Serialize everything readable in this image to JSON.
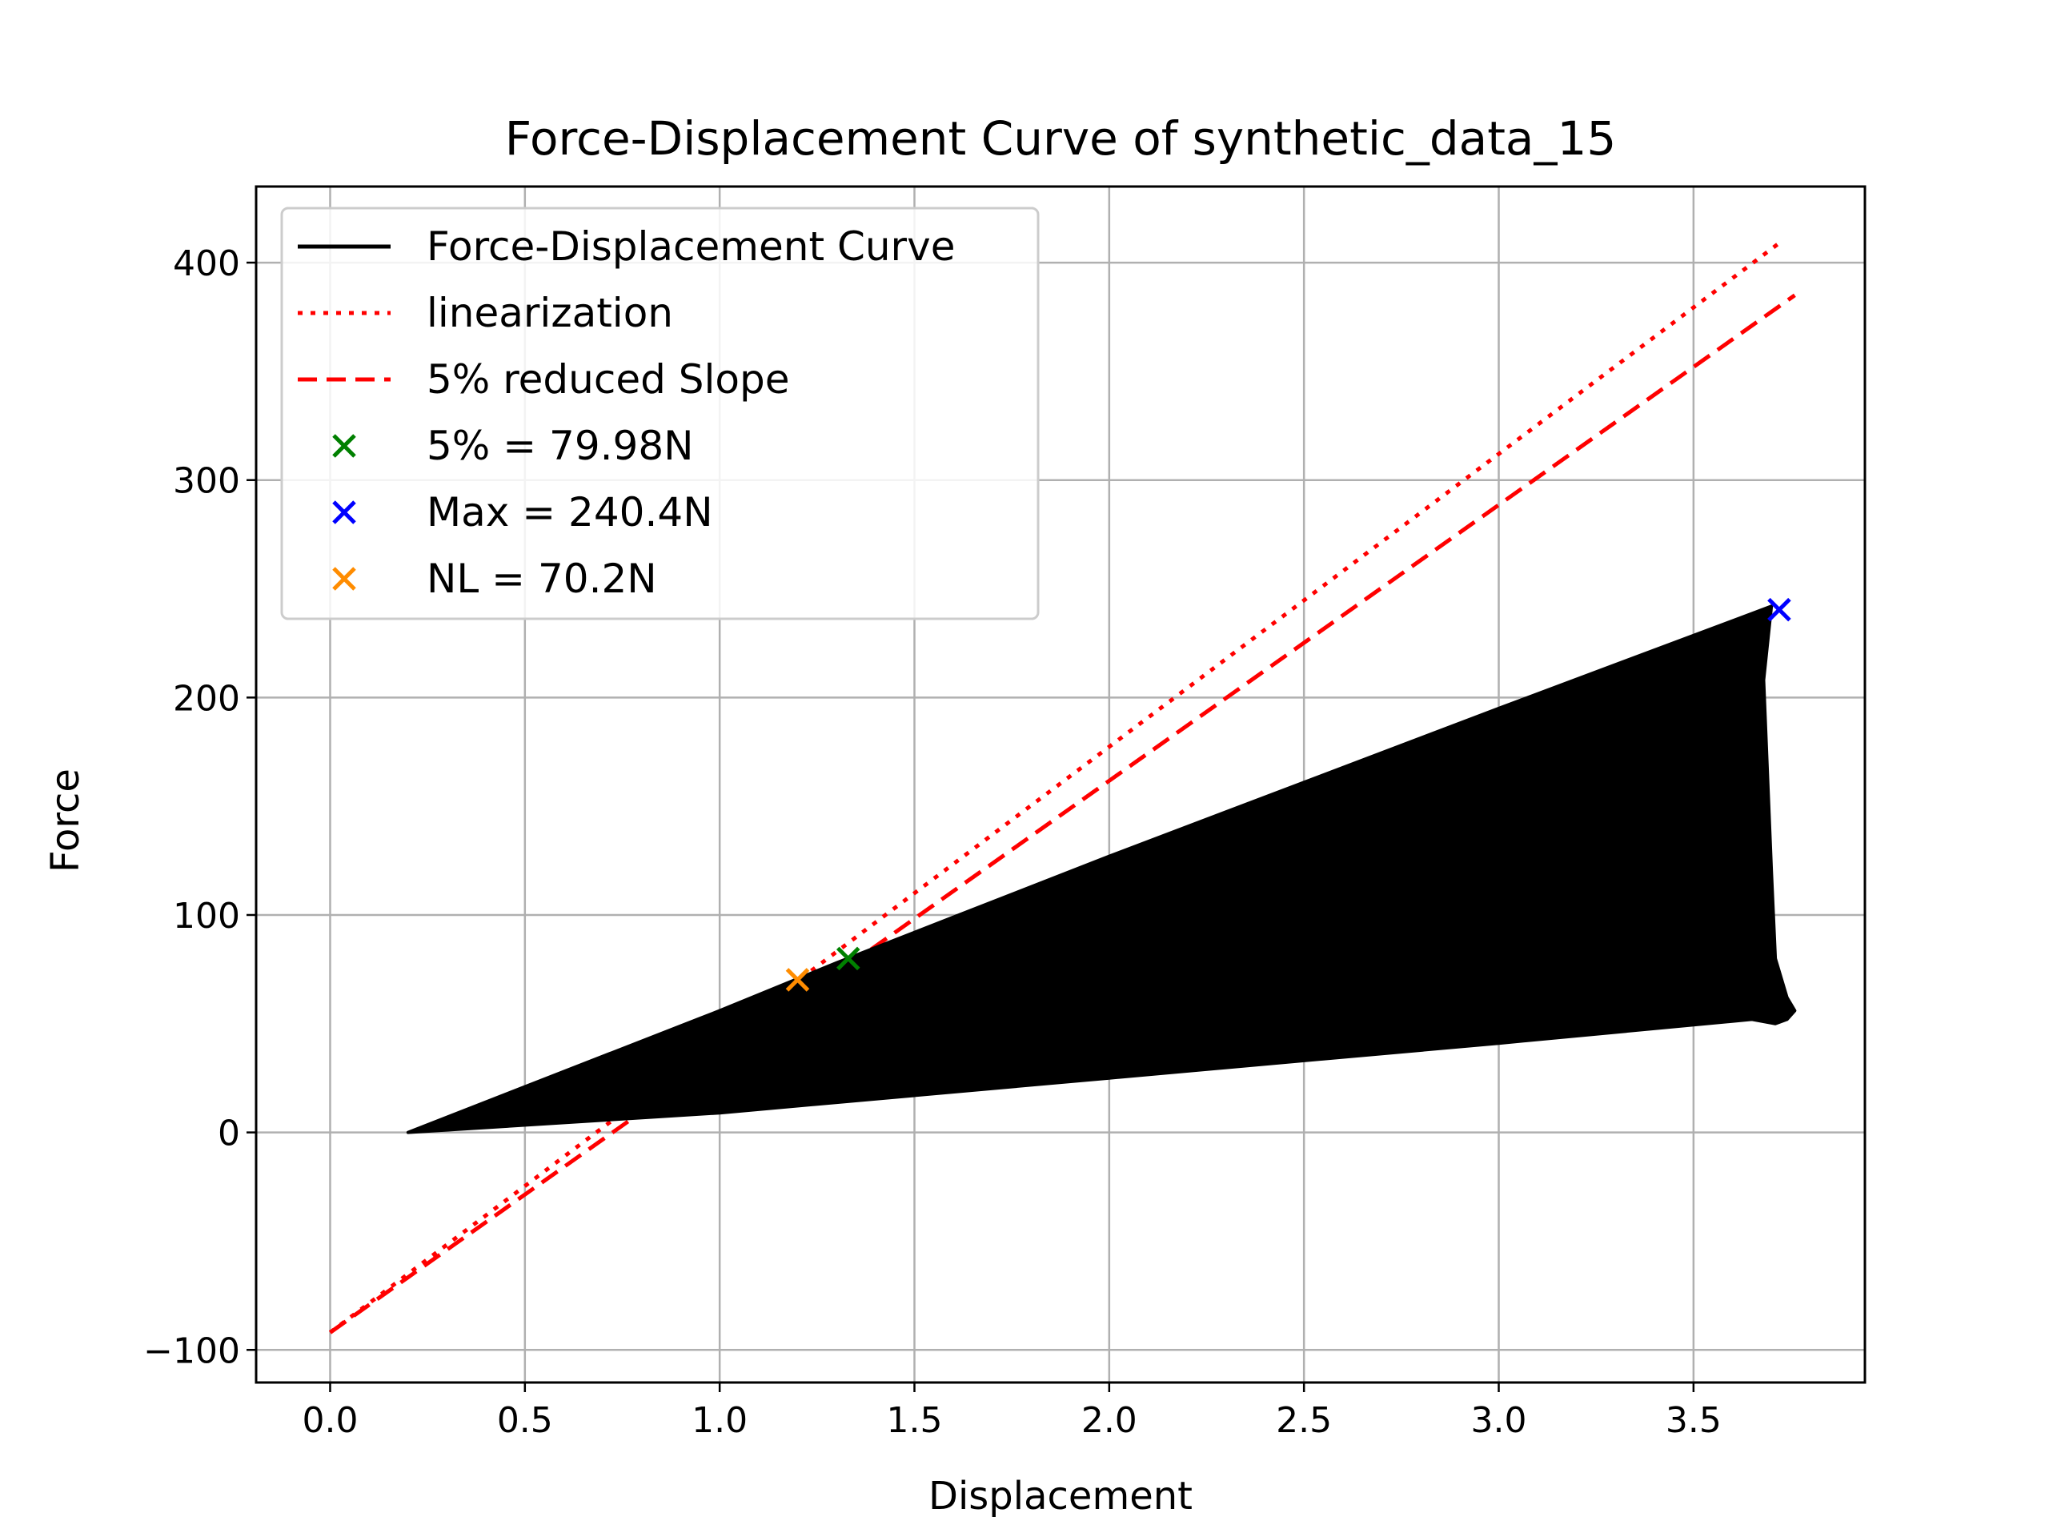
{
  "chart_data": {
    "type": "line",
    "title": "Force-Displacement Curve of synthetic_data_15",
    "xlabel": "Displacement",
    "ylabel": "Force",
    "xlim": [
      -0.19,
      3.94
    ],
    "ylim": [
      -115,
      435
    ],
    "xticks": [
      0.0,
      0.5,
      1.0,
      1.5,
      2.0,
      2.5,
      3.0,
      3.5
    ],
    "xtick_labels": [
      "0.0",
      "0.5",
      "1.0",
      "1.5",
      "2.0",
      "2.5",
      "3.0",
      "3.5"
    ],
    "yticks": [
      -100,
      0,
      100,
      200,
      300,
      400
    ],
    "ytick_labels": [
      "−100",
      "0",
      "100",
      "200",
      "300",
      "400"
    ],
    "grid": true,
    "legend_position": "upper-left",
    "series": [
      {
        "name": "Force-Displacement Curve",
        "style": "solid",
        "color": "#000000",
        "envelope_upper": [
          [
            0.2,
            0
          ],
          [
            1.0,
            56
          ],
          [
            1.3,
            78
          ],
          [
            2.0,
            127
          ],
          [
            3.0,
            195
          ],
          [
            3.7,
            242
          ]
        ],
        "envelope_lower": [
          [
            0.2,
            0
          ],
          [
            1.0,
            9
          ],
          [
            2.0,
            25
          ],
          [
            3.0,
            41
          ],
          [
            3.65,
            52
          ],
          [
            3.71,
            50
          ]
        ],
        "right_edge": [
          [
            3.7,
            242
          ],
          [
            3.68,
            208
          ],
          [
            3.7,
            120
          ],
          [
            3.71,
            80
          ],
          [
            3.74,
            62
          ],
          [
            3.76,
            56
          ],
          [
            3.74,
            52
          ]
        ]
      },
      {
        "name": "linearization",
        "style": "dotted",
        "color": "#ff0000",
        "x": [
          0.0,
          3.72
        ],
        "y": [
          -92,
          409
        ]
      },
      {
        "name": "5% reduced Slope",
        "style": "dashed",
        "color": "#ff0000",
        "x": [
          0.0,
          3.76
        ],
        "y": [
          -92,
          385
        ]
      }
    ],
    "markers": [
      {
        "name": "5% = 79.98N",
        "x": 1.33,
        "y": 79.98,
        "color": "#008000"
      },
      {
        "name": "Max = 240.4N",
        "x": 3.72,
        "y": 240.4,
        "color": "#0000ff"
      },
      {
        "name": "NL = 70.2N",
        "x": 1.2,
        "y": 70.2,
        "color": "#ff8c00"
      }
    ]
  }
}
